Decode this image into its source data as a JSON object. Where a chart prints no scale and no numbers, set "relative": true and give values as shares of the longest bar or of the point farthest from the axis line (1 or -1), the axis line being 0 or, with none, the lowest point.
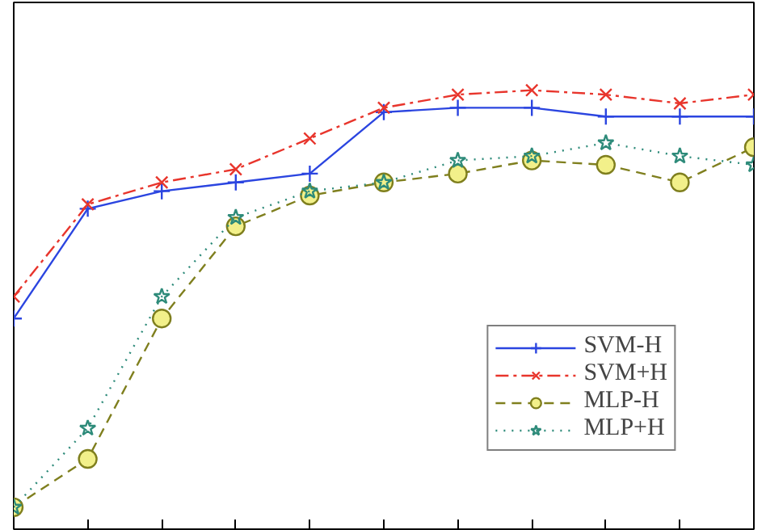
{
  "chart_data": {
    "type": "line",
    "relative": true,
    "categories": [
      null,
      null,
      null,
      null,
      null,
      null,
      null,
      null,
      null,
      null,
      null
    ],
    "legend": "bottom right",
    "grid": false,
    "series": [
      {
        "name": "SVM-H",
        "color": "#2b45e0",
        "marker": "cross",
        "line_style": "solid",
        "values": [
          0.48,
          0.73,
          0.77,
          0.79,
          0.81,
          0.95,
          0.96,
          0.96,
          0.94,
          0.94,
          0.94
        ]
      },
      {
        "name": "SVM+H",
        "color": "#e8352c",
        "marker": "x",
        "line_style": "dashdot",
        "values": [
          0.53,
          0.74,
          0.79,
          0.82,
          0.89,
          0.96,
          0.99,
          1.0,
          0.99,
          0.97,
          0.99
        ]
      },
      {
        "name": "MLP-H",
        "color": "#7f7f1e",
        "marker": "circle",
        "line_style": "dashed",
        "values": [
          0.05,
          0.16,
          0.48,
          0.69,
          0.76,
          0.79,
          0.81,
          0.84,
          0.83,
          0.79,
          0.87
        ]
      },
      {
        "name": "MLP+H",
        "color": "#2e8b7a",
        "marker": "star",
        "line_style": "dotted",
        "values": [
          0.05,
          0.23,
          0.53,
          0.71,
          0.77,
          0.79,
          0.84,
          0.85,
          0.88,
          0.85,
          0.83
        ]
      }
    ]
  }
}
